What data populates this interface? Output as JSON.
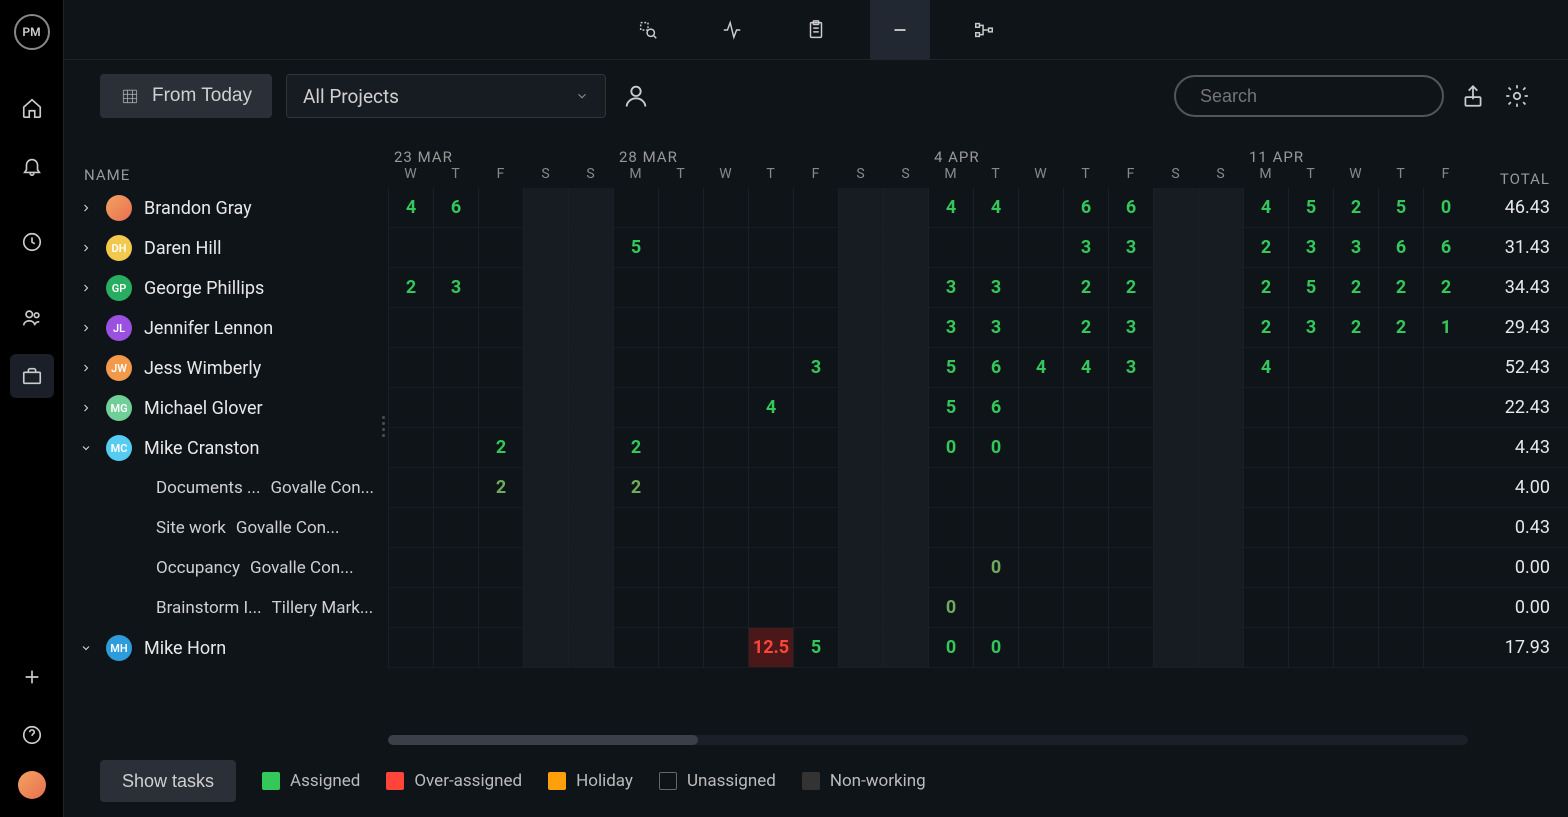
{
  "app": {
    "logo": "PM"
  },
  "toolbar": {
    "from_today": "From Today",
    "all_projects": "All Projects",
    "search_placeholder": "Search"
  },
  "columns": {
    "name_header": "NAME",
    "total_header": "TOTAL",
    "weeks": [
      {
        "label": "23 MAR",
        "days": [
          "W",
          "T",
          "F",
          "S",
          "S"
        ]
      },
      {
        "label": "28 MAR",
        "days": [
          "M",
          "T",
          "W",
          "T",
          "F",
          "S",
          "S"
        ]
      },
      {
        "label": "4 APR",
        "days": [
          "M",
          "T",
          "W",
          "T",
          "F",
          "S",
          "S"
        ]
      },
      {
        "label": "11 APR",
        "days": [
          "M",
          "T",
          "W",
          "T",
          "F"
        ]
      }
    ]
  },
  "day_count": 24,
  "weekend_indices": [
    3,
    4,
    10,
    11,
    17,
    18
  ],
  "name_col_width": 324,
  "day_col_width": 45,
  "total_col_width": 100,
  "colors": {
    "assigned": "#34c759",
    "over_assigned": "#ff453a",
    "holiday": "#ff9f0a",
    "unassigned": "#666666",
    "non_working": "#333333",
    "bg": "#0f1419",
    "weekend_bg": "#171b22",
    "over_bg": "#4a1818"
  },
  "avatars": {
    "BG": {
      "bg": "linear-gradient(135deg,#f4a261,#e76f51)",
      "text": "",
      "img": true
    },
    "DH": {
      "bg": "#f2c94c",
      "text": "DH"
    },
    "GP": {
      "bg": "#27ae60",
      "text": "GP"
    },
    "JL": {
      "bg": "#9b51e0",
      "text": "JL"
    },
    "JW": {
      "bg": "#f2994a",
      "text": "JW"
    },
    "MG": {
      "bg": "#6fcf97",
      "text": "MG"
    },
    "MC": {
      "bg": "#56ccf2",
      "text": "MC"
    },
    "MH": {
      "bg": "#2d9cdb",
      "text": "MH"
    }
  },
  "rows": [
    {
      "type": "person",
      "expanded": false,
      "avatar": "BG",
      "name": "Brandon Gray",
      "total": "46.43",
      "cells": [
        {
          "i": 0,
          "v": "4"
        },
        {
          "i": 1,
          "v": "6"
        },
        {
          "i": 12,
          "v": "4"
        },
        {
          "i": 13,
          "v": "4"
        },
        {
          "i": 15,
          "v": "6"
        },
        {
          "i": 16,
          "v": "6"
        },
        {
          "i": 19,
          "v": "4"
        },
        {
          "i": 20,
          "v": "5"
        },
        {
          "i": 21,
          "v": "2"
        },
        {
          "i": 22,
          "v": "5"
        },
        {
          "i": 23,
          "v": "0"
        }
      ]
    },
    {
      "type": "person",
      "expanded": false,
      "avatar": "DH",
      "name": "Daren Hill",
      "total": "31.43",
      "cells": [
        {
          "i": 5,
          "v": "5"
        },
        {
          "i": 15,
          "v": "3"
        },
        {
          "i": 16,
          "v": "3"
        },
        {
          "i": 19,
          "v": "2"
        },
        {
          "i": 20,
          "v": "3"
        },
        {
          "i": 21,
          "v": "3"
        },
        {
          "i": 22,
          "v": "6"
        },
        {
          "i": 23,
          "v": "6"
        }
      ]
    },
    {
      "type": "person",
      "expanded": false,
      "avatar": "GP",
      "name": "George Phillips",
      "total": "34.43",
      "cells": [
        {
          "i": 0,
          "v": "2"
        },
        {
          "i": 1,
          "v": "3"
        },
        {
          "i": 12,
          "v": "3"
        },
        {
          "i": 13,
          "v": "3"
        },
        {
          "i": 15,
          "v": "2"
        },
        {
          "i": 16,
          "v": "2"
        },
        {
          "i": 19,
          "v": "2"
        },
        {
          "i": 20,
          "v": "5"
        },
        {
          "i": 21,
          "v": "2"
        },
        {
          "i": 22,
          "v": "2"
        },
        {
          "i": 23,
          "v": "2"
        }
      ]
    },
    {
      "type": "person",
      "expanded": false,
      "avatar": "JL",
      "name": "Jennifer Lennon",
      "total": "29.43",
      "cells": [
        {
          "i": 12,
          "v": "3"
        },
        {
          "i": 13,
          "v": "3"
        },
        {
          "i": 15,
          "v": "2"
        },
        {
          "i": 16,
          "v": "3"
        },
        {
          "i": 19,
          "v": "2"
        },
        {
          "i": 20,
          "v": "3"
        },
        {
          "i": 21,
          "v": "2"
        },
        {
          "i": 22,
          "v": "2"
        },
        {
          "i": 23,
          "v": "1"
        }
      ]
    },
    {
      "type": "person",
      "expanded": false,
      "avatar": "JW",
      "name": "Jess Wimberly",
      "total": "52.43",
      "cells": [
        {
          "i": 9,
          "v": "3"
        },
        {
          "i": 12,
          "v": "5"
        },
        {
          "i": 13,
          "v": "6"
        },
        {
          "i": 14,
          "v": "4"
        },
        {
          "i": 15,
          "v": "4"
        },
        {
          "i": 16,
          "v": "3"
        },
        {
          "i": 19,
          "v": "4"
        }
      ]
    },
    {
      "type": "person",
      "expanded": false,
      "avatar": "MG",
      "name": "Michael Glover",
      "total": "22.43",
      "cells": [
        {
          "i": 8,
          "v": "4"
        },
        {
          "i": 12,
          "v": "5"
        },
        {
          "i": 13,
          "v": "6"
        }
      ]
    },
    {
      "type": "person",
      "expanded": true,
      "avatar": "MC",
      "name": "Mike Cranston",
      "total": "4.43",
      "cells": [
        {
          "i": 2,
          "v": "2"
        },
        {
          "i": 5,
          "v": "2"
        },
        {
          "i": 12,
          "v": "0"
        },
        {
          "i": 13,
          "v": "0"
        }
      ]
    },
    {
      "type": "sub",
      "task": "Documents ...",
      "project": "Govalle Con...",
      "total": "4.00",
      "cells": [
        {
          "i": 2,
          "v": "2",
          "light": true
        },
        {
          "i": 5,
          "v": "2",
          "light": true
        }
      ]
    },
    {
      "type": "sub",
      "task": "Site work",
      "project": "Govalle Con...",
      "total": "0.43",
      "cells": []
    },
    {
      "type": "sub",
      "task": "Occupancy",
      "project": "Govalle Con...",
      "total": "0.00",
      "cells": [
        {
          "i": 13,
          "v": "0",
          "light": true
        }
      ]
    },
    {
      "type": "sub",
      "task": "Brainstorm I...",
      "project": "Tillery Mark...",
      "total": "0.00",
      "cells": [
        {
          "i": 12,
          "v": "0",
          "light": true
        }
      ]
    },
    {
      "type": "person",
      "expanded": true,
      "avatar": "MH",
      "name": "Mike Horn",
      "total": "17.93",
      "cells": [
        {
          "i": 8,
          "v": "12.5",
          "over": true
        },
        {
          "i": 9,
          "v": "5"
        },
        {
          "i": 12,
          "v": "0"
        },
        {
          "i": 13,
          "v": "0"
        }
      ]
    }
  ],
  "footer": {
    "show_tasks": "Show tasks",
    "legend": [
      {
        "label": "Assigned",
        "color": "#34c759"
      },
      {
        "label": "Over-assigned",
        "color": "#ff453a"
      },
      {
        "label": "Holiday",
        "color": "#ff9f0a"
      },
      {
        "label": "Unassigned",
        "outline": true
      },
      {
        "label": "Non-working",
        "color": "#333333"
      }
    ]
  }
}
